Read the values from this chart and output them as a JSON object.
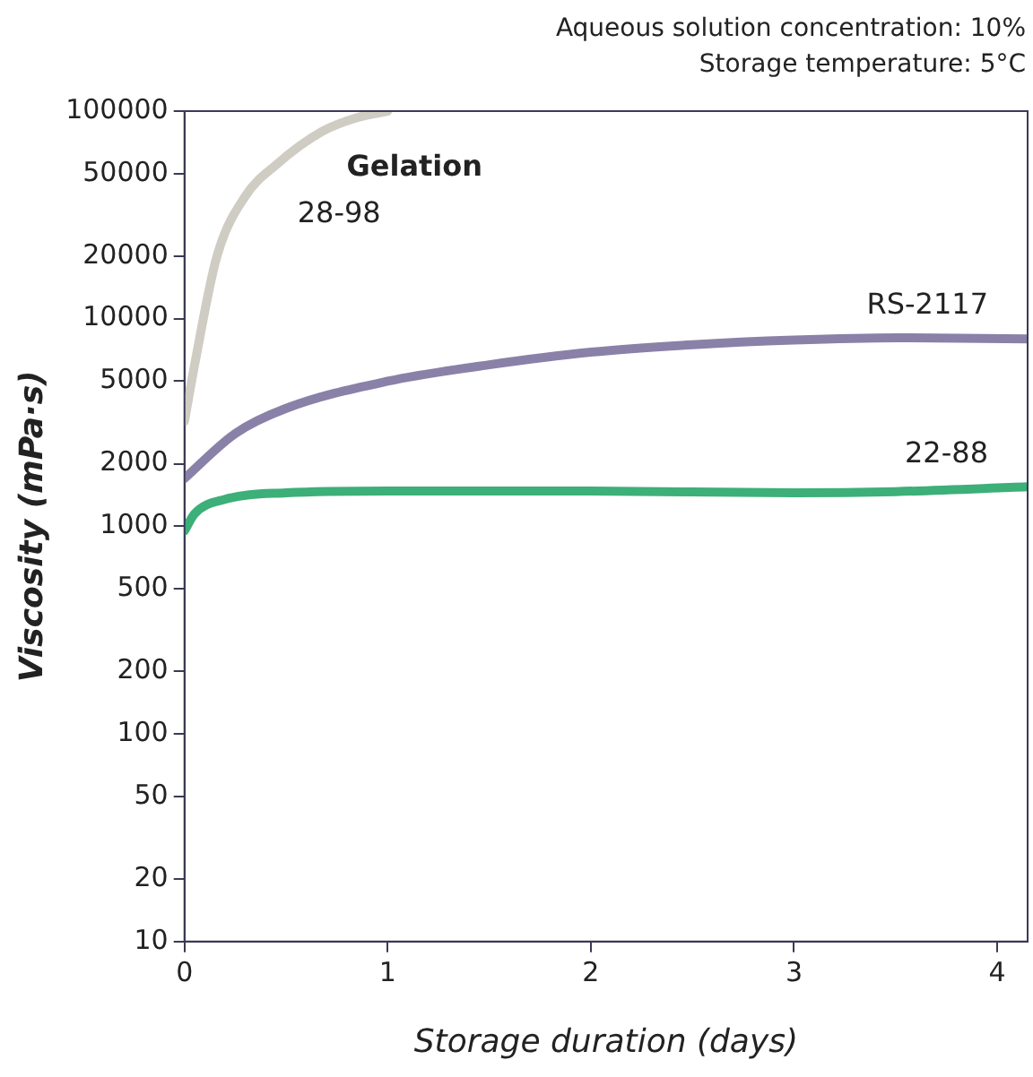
{
  "chart_data": {
    "type": "line",
    "xlabel": "Storage duration (days)",
    "ylabel": "Viscosity (mPa·s)",
    "log": "y",
    "xlim": [
      0,
      4.15
    ],
    "xticks": [
      0,
      1,
      2,
      3,
      4
    ],
    "ylim": [
      10,
      100000
    ],
    "yticks": [
      10,
      20,
      50,
      100,
      200,
      500,
      1000,
      2000,
      5000,
      10000,
      20000,
      50000,
      100000
    ],
    "grid": false,
    "legend": false,
    "marker": "none",
    "line_style": "solid",
    "annotations": [
      "Aqueous solution concentration: 10%",
      "Storage temperature: 5°C",
      {
        "text": "Gelation",
        "x": 1,
        "y": 100000
      }
    ],
    "series": [
      {
        "name": "28-98",
        "color": "#cfccc3",
        "x": [
          0,
          0.05,
          0.16,
          0.3,
          0.45,
          0.68,
          0.85,
          1.0
        ],
        "values": [
          3200,
          6000,
          20000,
          39000,
          55000,
          80000,
          93000,
          100000
        ]
      },
      {
        "name": "RS-2117",
        "color": "#8a81a8",
        "x": [
          0,
          0.25,
          0.5,
          1,
          1.5,
          2,
          2.5,
          3,
          3.5,
          4.15
        ],
        "values": [
          1700,
          2800,
          3700,
          5000,
          6000,
          6900,
          7500,
          7900,
          8100,
          8000
        ]
      },
      {
        "name": "22-88",
        "color": "#3daf78",
        "x": [
          0,
          0.05,
          0.2,
          0.5,
          1,
          2,
          3,
          3.5,
          4.15
        ],
        "values": [
          950,
          1150,
          1350,
          1450,
          1480,
          1480,
          1450,
          1470,
          1550
        ]
      }
    ]
  }
}
